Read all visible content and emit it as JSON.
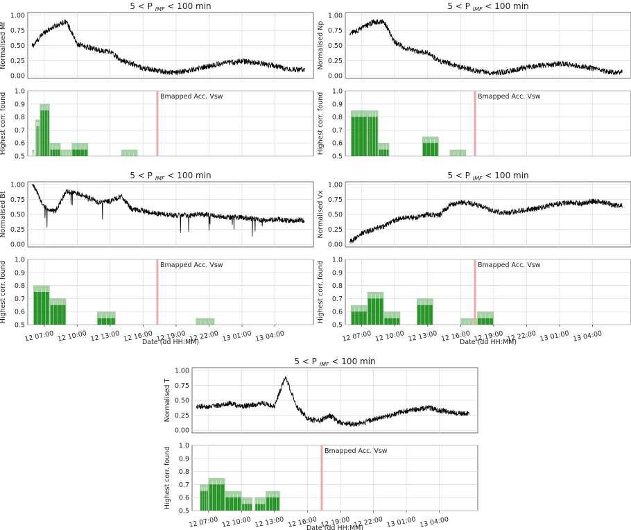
{
  "figure": {
    "panel_title": "5 < P",
    "panel_title_sub": "IMF",
    "panel_title_tail": " < 100 min",
    "time_xlabel": "Date (dd HH:MM)",
    "corr_ylabel": "Highest corr. found",
    "marker_label": "Bmapped Acc. Vsw",
    "time_ticks": [
      "12 07:00",
      "12 10:00",
      "12 13:00",
      "12 16:00",
      "12 19:00",
      "12 22:00",
      "13 01:00",
      "13 04:00"
    ],
    "colors": {
      "signal": "#000000",
      "bar_green": "#008000",
      "marker": "#f4a6a6",
      "grid": "#d9d9d9"
    }
  },
  "chart_data": [
    {
      "type": "line",
      "panel": "Mf",
      "ylabel": "Normalised Mf",
      "ylim": [
        0,
        1
      ],
      "yticks": [
        "0.00",
        "0.25",
        "0.50",
        "0.75",
        "1.00"
      ],
      "x_hours": [
        6,
        7,
        8,
        9,
        10,
        11,
        12,
        13,
        14,
        15,
        16,
        17,
        18,
        19,
        20,
        21,
        22,
        23,
        24,
        25,
        26,
        27,
        28,
        29,
        30
      ],
      "values": [
        0.5,
        0.72,
        0.82,
        0.9,
        0.52,
        0.47,
        0.42,
        0.4,
        0.25,
        0.2,
        0.12,
        0.1,
        0.06,
        0.05,
        0.08,
        0.12,
        0.16,
        0.2,
        0.22,
        0.24,
        0.22,
        0.2,
        0.16,
        0.12,
        0.1
      ]
    },
    {
      "type": "bar",
      "panel": "Mf corr",
      "ylim": [
        0.5,
        1.0
      ],
      "yticks": [
        "0.5",
        "0.6",
        "0.7",
        "0.8",
        "0.9",
        "1.0"
      ],
      "bars": [
        {
          "start": 5.9,
          "end": 6.1,
          "value": 0.55
        },
        {
          "start": 6.2,
          "end": 6.6,
          "value": 0.78
        },
        {
          "start": 6.6,
          "end": 7.5,
          "value": 0.9
        },
        {
          "start": 7.5,
          "end": 8.5,
          "value": 0.6
        },
        {
          "start": 8.5,
          "end": 9.5,
          "value": 0.55
        },
        {
          "start": 9.5,
          "end": 11.0,
          "value": 0.6
        },
        {
          "start": 14.0,
          "end": 15.5,
          "value": 0.55
        }
      ],
      "marker_x": 17.3
    },
    {
      "type": "line",
      "panel": "Np",
      "ylabel": "Normalised Np",
      "ylim": [
        0,
        1
      ],
      "yticks": [
        "0.00",
        "0.25",
        "0.50",
        "0.75",
        "1.00"
      ],
      "x_hours": [
        6,
        7,
        8,
        9,
        10,
        11,
        12,
        13,
        14,
        15,
        16,
        17,
        18,
        19,
        20,
        21,
        22,
        23,
        24,
        25,
        26,
        27,
        28,
        29,
        30
      ],
      "values": [
        0.7,
        0.78,
        0.88,
        0.9,
        0.55,
        0.45,
        0.4,
        0.38,
        0.25,
        0.2,
        0.14,
        0.1,
        0.07,
        0.05,
        0.06,
        0.1,
        0.14,
        0.16,
        0.18,
        0.2,
        0.18,
        0.16,
        0.12,
        0.08,
        0.06
      ]
    },
    {
      "type": "bar",
      "panel": "Np corr",
      "ylim": [
        0.5,
        1.0
      ],
      "yticks": [
        "0.5",
        "0.6",
        "0.7",
        "0.8",
        "0.9",
        "1.0"
      ],
      "bars": [
        {
          "start": 6.0,
          "end": 7.5,
          "value": 0.85
        },
        {
          "start": 7.5,
          "end": 8.5,
          "value": 0.85
        },
        {
          "start": 8.5,
          "end": 9.5,
          "value": 0.6
        },
        {
          "start": 12.5,
          "end": 14.0,
          "value": 0.65
        },
        {
          "start": 15.0,
          "end": 16.5,
          "value": 0.55
        }
      ],
      "marker_x": 17.3
    },
    {
      "type": "line",
      "panel": "Bt",
      "ylabel": "Normalised Bt",
      "ylim": [
        0,
        1
      ],
      "yticks": [
        "0.00",
        "0.25",
        "0.50",
        "0.75",
        "1.00"
      ],
      "x_hours": [
        6,
        7,
        8,
        9,
        10,
        11,
        12,
        13,
        14,
        15,
        16,
        17,
        18,
        19,
        20,
        21,
        22,
        23,
        24,
        25,
        26,
        27,
        28,
        29,
        30
      ],
      "values": [
        1.0,
        0.62,
        0.55,
        0.88,
        0.85,
        0.78,
        0.7,
        0.72,
        0.8,
        0.58,
        0.56,
        0.52,
        0.5,
        0.48,
        0.48,
        0.5,
        0.49,
        0.47,
        0.45,
        0.45,
        0.42,
        0.4,
        0.42,
        0.4,
        0.4
      ]
    },
    {
      "type": "bar",
      "panel": "Bt corr",
      "ylim": [
        0.5,
        1.0
      ],
      "yticks": [
        "0.5",
        "0.6",
        "0.7",
        "0.8",
        "0.9",
        "1.0"
      ],
      "bars": [
        {
          "start": 6.0,
          "end": 7.5,
          "value": 0.8
        },
        {
          "start": 7.5,
          "end": 9.0,
          "value": 0.7
        },
        {
          "start": 11.8,
          "end": 13.5,
          "value": 0.6
        },
        {
          "start": 20.8,
          "end": 22.5,
          "value": 0.55
        }
      ],
      "marker_x": 17.3
    },
    {
      "type": "line",
      "panel": "Vx",
      "ylabel": "Normalised Vx",
      "ylim": [
        0,
        1
      ],
      "yticks": [
        "0.00",
        "0.25",
        "0.50",
        "0.75",
        "1.00"
      ],
      "x_hours": [
        6,
        7,
        8,
        9,
        10,
        11,
        12,
        13,
        14,
        15,
        16,
        17,
        18,
        19,
        20,
        21,
        22,
        23,
        24,
        25,
        26,
        27,
        28,
        29,
        30
      ],
      "values": [
        0.05,
        0.18,
        0.25,
        0.3,
        0.4,
        0.45,
        0.45,
        0.5,
        0.48,
        0.65,
        0.7,
        0.68,
        0.62,
        0.55,
        0.52,
        0.55,
        0.58,
        0.6,
        0.65,
        0.68,
        0.7,
        0.68,
        0.72,
        0.7,
        0.65
      ]
    },
    {
      "type": "bar",
      "panel": "Vx corr",
      "ylim": [
        0.5,
        1.0
      ],
      "yticks": [
        "0.5",
        "0.6",
        "0.7",
        "0.8",
        "0.9",
        "1.0"
      ],
      "bars": [
        {
          "start": 6.0,
          "end": 7.5,
          "value": 0.65
        },
        {
          "start": 7.5,
          "end": 9.0,
          "value": 0.75
        },
        {
          "start": 9.0,
          "end": 10.5,
          "value": 0.6
        },
        {
          "start": 12.0,
          "end": 13.5,
          "value": 0.7
        },
        {
          "start": 16.0,
          "end": 17.5,
          "value": 0.55
        },
        {
          "start": 17.5,
          "end": 19.0,
          "value": 0.6
        }
      ],
      "marker_x": 17.3
    },
    {
      "type": "line",
      "panel": "T",
      "ylabel": "Normalised T",
      "ylim": [
        0,
        1
      ],
      "yticks": [
        "0.00",
        "0.25",
        "0.50",
        "0.75",
        "1.00"
      ],
      "x_hours": [
        6,
        7,
        8,
        9,
        10,
        11,
        12,
        13,
        14,
        15,
        16,
        17,
        18,
        19,
        20,
        21,
        22,
        23,
        24,
        25,
        26,
        27,
        28,
        29,
        30
      ],
      "values": [
        0.4,
        0.38,
        0.42,
        0.45,
        0.4,
        0.42,
        0.45,
        0.4,
        0.9,
        0.4,
        0.2,
        0.15,
        0.25,
        0.12,
        0.1,
        0.12,
        0.18,
        0.22,
        0.28,
        0.32,
        0.35,
        0.38,
        0.33,
        0.3,
        0.28
      ]
    },
    {
      "type": "bar",
      "panel": "T corr",
      "ylim": [
        0.5,
        1.0
      ],
      "yticks": [
        "0.5",
        "0.6",
        "0.7",
        "0.8",
        "0.9",
        "1.0"
      ],
      "bars": [
        {
          "start": 6.2,
          "end": 7.0,
          "value": 0.7
        },
        {
          "start": 7.0,
          "end": 8.5,
          "value": 0.75
        },
        {
          "start": 8.5,
          "end": 10.0,
          "value": 0.65
        },
        {
          "start": 10.0,
          "end": 11.0,
          "value": 0.6
        },
        {
          "start": 11.2,
          "end": 12.2,
          "value": 0.6
        },
        {
          "start": 12.2,
          "end": 13.5,
          "value": 0.65
        }
      ],
      "marker_x": 17.3
    }
  ]
}
